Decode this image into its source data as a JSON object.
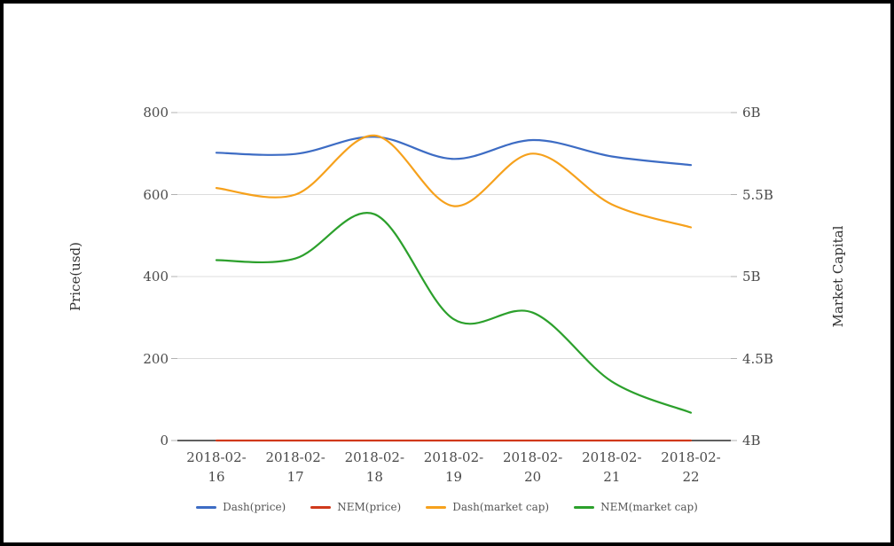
{
  "window": {
    "background": "#ffffff",
    "frame_color": "#000000"
  },
  "chart_data": {
    "type": "line",
    "smooth": true,
    "grid": "horizontal-only",
    "legend_position": "bottom",
    "categories": [
      "2018-02-16",
      "2018-02-17",
      "2018-02-18",
      "2018-02-19",
      "2018-02-20",
      "2018-02-21",
      "2018-02-22"
    ],
    "left_axis": {
      "label": "Price(usd)",
      "min": 0,
      "max": 800,
      "ticks": [
        {
          "value": 800,
          "label": "800"
        },
        {
          "value": 600,
          "label": "600"
        },
        {
          "value": 400,
          "label": "400"
        },
        {
          "value": 200,
          "label": "200"
        },
        {
          "value": 0,
          "label": "0"
        }
      ]
    },
    "right_axis": {
      "label": "Market Capital",
      "min": 4,
      "max": 6,
      "ticks": [
        {
          "value": 6,
          "label": "6B"
        },
        {
          "value": 5.5,
          "label": "5.5B"
        },
        {
          "value": 5,
          "label": "5B"
        },
        {
          "value": 4.5,
          "label": "4.5B"
        },
        {
          "value": 4,
          "label": "4B"
        }
      ]
    },
    "series": [
      {
        "name": "Dash(price)",
        "axis": "left",
        "color": "#3d6cc4",
        "values": [
          702,
          699,
          741,
          687,
          733,
          693,
          672
        ]
      },
      {
        "name": "NEM(price)",
        "axis": "left",
        "color": "#d0391b",
        "values": [
          0,
          0,
          0,
          0,
          0,
          0,
          0
        ]
      },
      {
        "name": "Dash(market cap)",
        "axis": "right",
        "color": "#f6a11c",
        "values": [
          5.54,
          5.5,
          5.86,
          5.43,
          5.75,
          5.44,
          5.3
        ]
      },
      {
        "name": "NEM(market cap)",
        "axis": "right",
        "color": "#2ca02c",
        "values": [
          5.1,
          5.11,
          5.38,
          4.74,
          4.78,
          4.36,
          4.17
        ]
      }
    ],
    "colors": {
      "gridline": "#dcdcdc",
      "axis_line": "#2b2b2b",
      "tick_mark": "#b0b0b0",
      "tick_text": "#4a4a4a",
      "legend_text": "#555555"
    }
  }
}
